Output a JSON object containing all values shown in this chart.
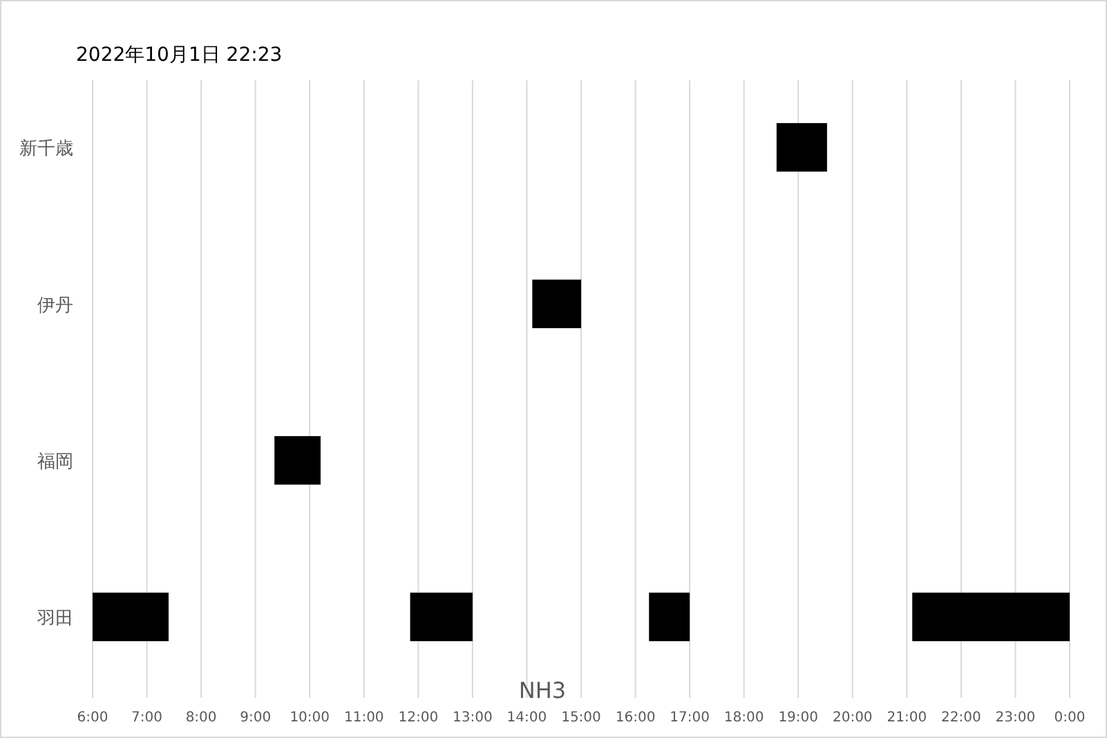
{
  "chart_data": {
    "type": "bar",
    "orientation": "horizontal",
    "title": "2022年10月1日 22:23",
    "xlabel": "NH3",
    "categories": [
      "新千歳",
      "伊丹",
      "福岡",
      "羽田"
    ],
    "series": [
      {
        "color": "#000000",
        "values": [
          0.93,
          0.9,
          0.85,
          1.4
        ],
        "base": [
          18.6,
          14.1,
          9.35,
          6
        ]
      },
      {
        "color": "#000000",
        "values": [
          null,
          null,
          null,
          1.15
        ],
        "base": [
          null,
          null,
          null,
          11.85
        ]
      },
      {
        "color": "#000000",
        "values": [
          null,
          null,
          null,
          0.75
        ],
        "base": [
          null,
          null,
          null,
          16.25
        ]
      },
      {
        "color": "#000000",
        "values": [
          null,
          null,
          null,
          2.9
        ],
        "base": [
          null,
          null,
          null,
          21.1
        ]
      }
    ],
    "xlim": [
      6,
      24
    ],
    "xticks": [
      {
        "value": 6,
        "label": "6:00"
      },
      {
        "value": 7,
        "label": "7:00"
      },
      {
        "value": 8,
        "label": "8:00"
      },
      {
        "value": 9,
        "label": "9:00"
      },
      {
        "value": 10,
        "label": "10:00"
      },
      {
        "value": 11,
        "label": "11:00"
      },
      {
        "value": 12,
        "label": "12:00"
      },
      {
        "value": 13,
        "label": "13:00"
      },
      {
        "value": 14,
        "label": "14:00"
      },
      {
        "value": 15,
        "label": "15:00"
      },
      {
        "value": 16,
        "label": "16:00"
      },
      {
        "value": 17,
        "label": "17:00"
      },
      {
        "value": 18,
        "label": "18:00"
      },
      {
        "value": 19,
        "label": "19:00"
      },
      {
        "value": 20,
        "label": "20:00"
      },
      {
        "value": 21,
        "label": "21:00"
      },
      {
        "value": 22,
        "label": "22:00"
      },
      {
        "value": 23,
        "label": "23:00"
      },
      {
        "value": 24,
        "label": "0:00"
      }
    ],
    "grid": "x"
  }
}
